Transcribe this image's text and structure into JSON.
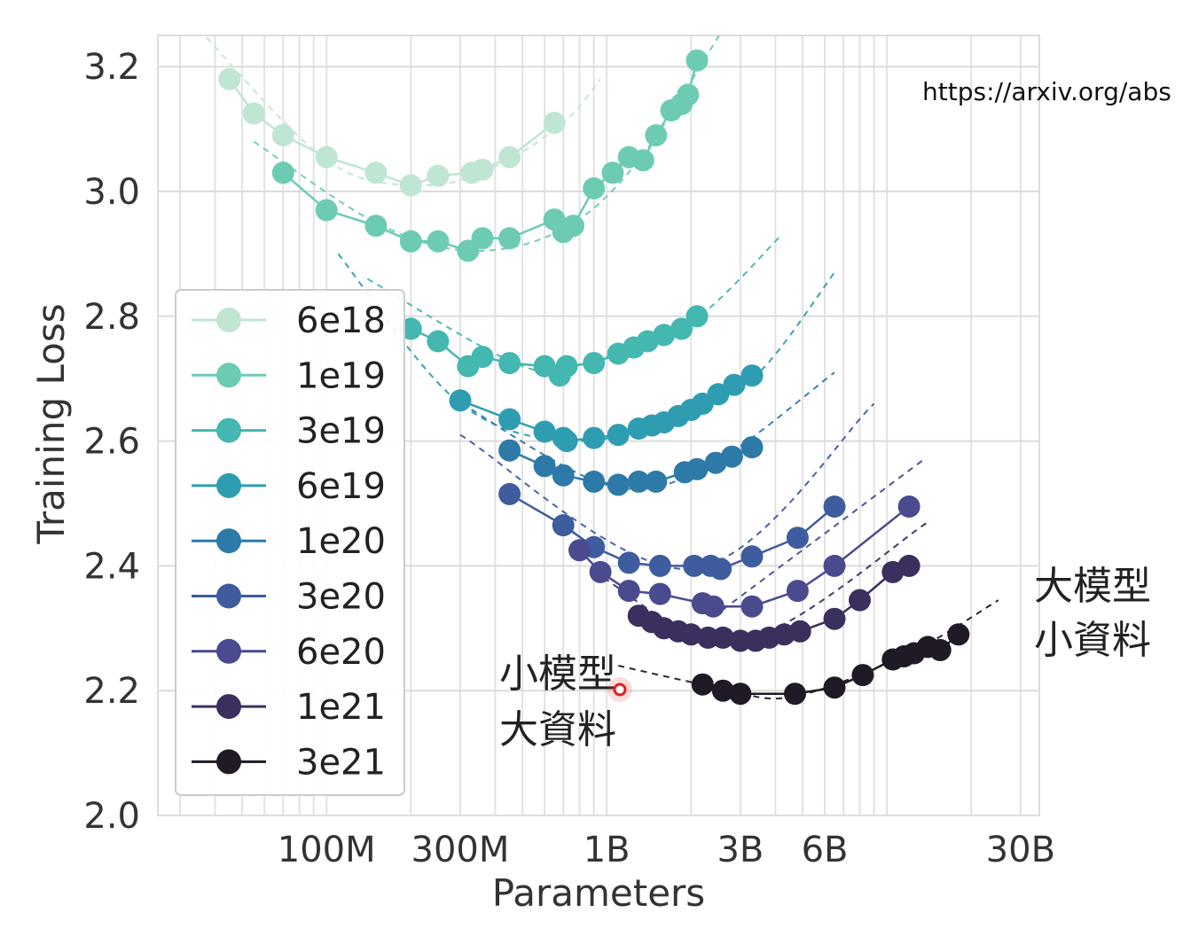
{
  "chart_data": {
    "type": "line",
    "xscale": "log",
    "xlabel": "Parameters",
    "ylabel": "Training Loss",
    "xlim": [
      25000000,
      35000000000
    ],
    "ylim": [
      2.0,
      3.25
    ],
    "xticks": [
      {
        "value": 100000000,
        "label": "100M"
      },
      {
        "value": 300000000,
        "label": "300M"
      },
      {
        "value": 1000000000,
        "label": "1B"
      },
      {
        "value": 3000000000,
        "label": "3B"
      },
      {
        "value": 6000000000,
        "label": "6B"
      },
      {
        "value": 30000000000,
        "label": "30B"
      }
    ],
    "yticks": [
      {
        "value": 2.0,
        "label": "2.0"
      },
      {
        "value": 2.2,
        "label": "2.2"
      },
      {
        "value": 2.4,
        "label": "2.4"
      },
      {
        "value": 2.6,
        "label": "2.6"
      },
      {
        "value": 2.8,
        "label": "2.8"
      },
      {
        "value": 3.0,
        "label": "3.0"
      },
      {
        "value": 3.2,
        "label": "3.2"
      }
    ],
    "grid": true,
    "legend_position": "left",
    "series": [
      {
        "name": "6e18",
        "color": "#bfe6d3",
        "points": [
          [
            45,
            3.18
          ],
          [
            55,
            3.125
          ],
          [
            70,
            3.09
          ],
          [
            100,
            3.055
          ],
          [
            150,
            3.03
          ],
          [
            200,
            3.01
          ],
          [
            250,
            3.025
          ],
          [
            330,
            3.03
          ],
          [
            360,
            3.035
          ],
          [
            450,
            3.055
          ],
          [
            650,
            3.11
          ]
        ],
        "fit": [
          [
            35,
            3.26
          ],
          [
            100,
            3.05
          ],
          [
            220,
            3.01
          ],
          [
            400,
            3.04
          ],
          [
            700,
            3.11
          ],
          [
            950,
            3.18
          ]
        ]
      },
      {
        "name": "1e19",
        "color": "#6dcbb4",
        "points": [
          [
            70,
            3.03
          ],
          [
            100,
            2.97
          ],
          [
            150,
            2.945
          ],
          [
            200,
            2.92
          ],
          [
            250,
            2.92
          ],
          [
            320,
            2.905
          ],
          [
            360,
            2.925
          ],
          [
            450,
            2.925
          ],
          [
            650,
            2.955
          ],
          [
            700,
            2.935
          ],
          [
            760,
            2.945
          ],
          [
            900,
            3.005
          ],
          [
            1050,
            3.03
          ],
          [
            1200,
            3.055
          ],
          [
            1350,
            3.05
          ],
          [
            1500,
            3.09
          ],
          [
            1700,
            3.13
          ],
          [
            1850,
            3.14
          ],
          [
            1950,
            3.155
          ],
          [
            2100,
            3.21
          ]
        ],
        "fit": [
          [
            55,
            3.08
          ],
          [
            150,
            2.95
          ],
          [
            330,
            2.905
          ],
          [
            700,
            2.94
          ],
          [
            1300,
            3.05
          ],
          [
            2600,
            3.26
          ]
        ]
      },
      {
        "name": "3e19",
        "color": "#44b7b1",
        "points": [
          [
            200,
            2.78
          ],
          [
            250,
            2.76
          ],
          [
            320,
            2.72
          ],
          [
            360,
            2.735
          ],
          [
            450,
            2.725
          ],
          [
            600,
            2.72
          ],
          [
            680,
            2.705
          ],
          [
            720,
            2.72
          ],
          [
            900,
            2.725
          ],
          [
            1100,
            2.74
          ],
          [
            1250,
            2.75
          ],
          [
            1400,
            2.76
          ],
          [
            1600,
            2.77
          ],
          [
            1850,
            2.78
          ],
          [
            2100,
            2.8
          ]
        ],
        "fit": [
          [
            140,
            2.86
          ],
          [
            500,
            2.72
          ],
          [
            900,
            2.73
          ],
          [
            2000,
            2.79
          ],
          [
            4200,
            2.93
          ]
        ]
      },
      {
        "name": "6e19",
        "color": "#2f9db1",
        "points": [
          [
            300,
            2.665
          ],
          [
            450,
            2.635
          ],
          [
            600,
            2.615
          ],
          [
            700,
            2.605
          ],
          [
            720,
            2.6
          ],
          [
            900,
            2.605
          ],
          [
            1100,
            2.61
          ],
          [
            1300,
            2.62
          ],
          [
            1450,
            2.625
          ],
          [
            1600,
            2.63
          ],
          [
            1800,
            2.64
          ],
          [
            2000,
            2.65
          ],
          [
            2200,
            2.66
          ],
          [
            2500,
            2.675
          ],
          [
            2850,
            2.69
          ],
          [
            3300,
            2.705
          ]
        ],
        "fit": [
          [
            110,
            2.9
          ],
          [
            300,
            2.66
          ],
          [
            800,
            2.6
          ],
          [
            2000,
            2.65
          ],
          [
            3500,
            2.71
          ],
          [
            6500,
            2.87
          ]
        ]
      },
      {
        "name": "1e20",
        "color": "#2d7aa8",
        "points": [
          [
            450,
            2.585
          ],
          [
            600,
            2.56
          ],
          [
            700,
            2.545
          ],
          [
            900,
            2.535
          ],
          [
            1100,
            2.53
          ],
          [
            1300,
            2.535
          ],
          [
            1500,
            2.535
          ],
          [
            1900,
            2.55
          ],
          [
            2100,
            2.555
          ],
          [
            2450,
            2.565
          ],
          [
            2800,
            2.575
          ],
          [
            3300,
            2.59
          ]
        ],
        "fit": [
          [
            280,
            2.67
          ],
          [
            1000,
            2.53
          ],
          [
            2300,
            2.56
          ],
          [
            6500,
            2.71
          ]
        ]
      },
      {
        "name": "3e20",
        "color": "#3e5c9e",
        "points": [
          [
            450,
            2.515
          ],
          [
            700,
            2.465
          ],
          [
            900,
            2.43
          ],
          [
            1200,
            2.405
          ],
          [
            1550,
            2.4
          ],
          [
            2050,
            2.4
          ],
          [
            2350,
            2.4
          ],
          [
            2550,
            2.395
          ],
          [
            3300,
            2.415
          ],
          [
            4800,
            2.445
          ],
          [
            6500,
            2.495
          ]
        ],
        "fit": [
          [
            300,
            2.61
          ],
          [
            2000,
            2.395
          ],
          [
            9000,
            2.66
          ]
        ]
      },
      {
        "name": "6e20",
        "color": "#4a4a8e",
        "points": [
          [
            800,
            2.425
          ],
          [
            950,
            2.39
          ],
          [
            1200,
            2.36
          ],
          [
            1550,
            2.355
          ],
          [
            2200,
            2.34
          ],
          [
            2400,
            2.335
          ],
          [
            3300,
            2.335
          ],
          [
            4800,
            2.36
          ],
          [
            6500,
            2.4
          ],
          [
            12000,
            2.495
          ]
        ],
        "fit": [
          [
            2600,
            2.33
          ],
          [
            13500,
            2.57
          ]
        ]
      },
      {
        "name": "1e21",
        "color": "#3b2f5e",
        "points": [
          [
            1300,
            2.32
          ],
          [
            1450,
            2.31
          ],
          [
            1600,
            2.3
          ],
          [
            1800,
            2.295
          ],
          [
            2000,
            2.29
          ],
          [
            2300,
            2.285
          ],
          [
            2600,
            2.285
          ],
          [
            3000,
            2.28
          ],
          [
            3400,
            2.28
          ],
          [
            3800,
            2.285
          ],
          [
            4300,
            2.29
          ],
          [
            4900,
            2.295
          ],
          [
            6500,
            2.315
          ],
          [
            8000,
            2.345
          ],
          [
            10500,
            2.39
          ],
          [
            12000,
            2.4
          ]
        ],
        "fit": [
          [
            900,
            2.39
          ],
          [
            3000,
            2.28
          ],
          [
            14000,
            2.47
          ]
        ]
      },
      {
        "name": "3e21",
        "color": "#1f1a25",
        "points": [
          [
            2200,
            2.21
          ],
          [
            2600,
            2.2
          ],
          [
            3000,
            2.195
          ],
          [
            4700,
            2.195
          ],
          [
            6500,
            2.205
          ],
          [
            8200,
            2.225
          ],
          [
            10500,
            2.25
          ],
          [
            11500,
            2.255
          ],
          [
            12500,
            2.26
          ],
          [
            14000,
            2.27
          ],
          [
            15500,
            2.265
          ],
          [
            18000,
            2.29
          ]
        ],
        "fit": [
          [
            1100,
            2.24
          ],
          [
            2500,
            2.205
          ],
          [
            4600,
            2.19
          ],
          [
            12000,
            2.26
          ],
          [
            25000,
            2.345
          ]
        ]
      }
    ]
  },
  "annotations": {
    "small_model_big_data": [
      "小模型",
      "大資料"
    ],
    "big_model_small_data": [
      "大模型",
      "小資料"
    ],
    "url": "https://arxiv.org/abs"
  }
}
